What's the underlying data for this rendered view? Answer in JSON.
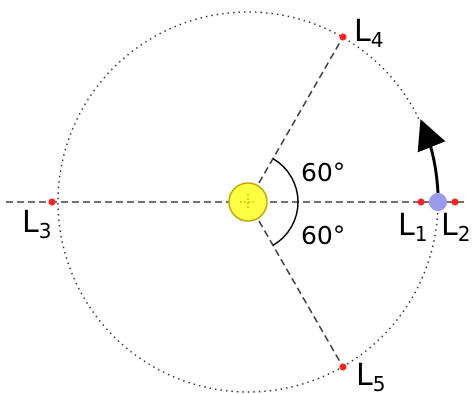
{
  "points": {
    "l1": {
      "letter": "L",
      "index": "1"
    },
    "l2": {
      "letter": "L",
      "index": "2"
    },
    "l3": {
      "letter": "L",
      "index": "3"
    },
    "l4": {
      "letter": "L",
      "index": "4"
    },
    "l5": {
      "letter": "L",
      "index": "5"
    }
  },
  "angles": {
    "upper": "60°",
    "lower": "60°"
  },
  "colors": {
    "sun_fill": "#ffff44",
    "sun_stroke": "#c8a000",
    "planet": "#9999ee",
    "lagrange_point": "#ff2020",
    "lines": "#404040"
  },
  "icons": {
    "sun": "sun-icon",
    "planet": "planet-icon",
    "orbit_arrow": "curved-arrow-icon"
  }
}
